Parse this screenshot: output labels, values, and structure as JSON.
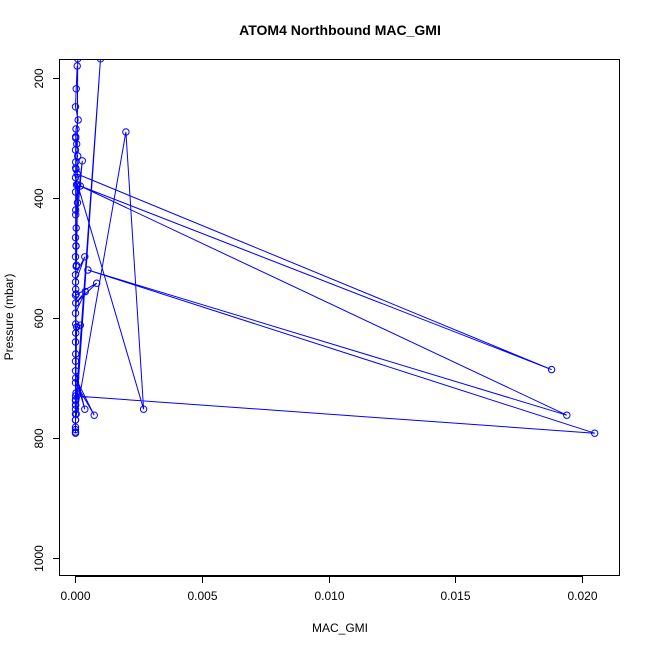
{
  "chart_data": {
    "type": "line",
    "title": "ATOM4 Northbound MAC_GMI",
    "xlabel": "MAC_GMI",
    "ylabel": "Pressure (mbar)",
    "xlim": [
      -0.0006,
      0.0215
    ],
    "ylim": [
      1030,
      170
    ],
    "y_reversed": true,
    "x_ticks": [
      0.0,
      0.005,
      0.01,
      0.015,
      0.02
    ],
    "x_tick_labels": [
      "0.000",
      "0.005",
      "0.010",
      "0.015",
      "0.020"
    ],
    "y_ticks": [
      200,
      400,
      600,
      800,
      1000
    ],
    "y_tick_labels": [
      "200",
      "400",
      "600",
      "800",
      "1000"
    ],
    "grid": false,
    "legend": "none",
    "series_color": "#0000ff",
    "series": [
      {
        "x": [
          8e-05,
          4e-05,
          1e-05,
          0.00012,
          3e-05,
          2e-05,
          6e-05,
          1e-05,
          0.0001,
          2e-05,
          3e-05,
          1e-05,
          5e-05,
          1e-05,
          9e-05,
          2e-05,
          0.00028,
          4e-05,
          1e-05,
          3e-05,
          1e-05,
          4e-05,
          1e-05,
          0.00038,
          1e-05,
          2e-05,
          1e-05,
          0.00085,
          2e-05,
          0.0004,
          1e-05,
          2e-05,
          0.0002,
          2e-05,
          1e-05,
          2e-05,
          1e-05,
          1e-05,
          0.00038,
          2e-05,
          0.00075,
          1e-05,
          3e-05,
          1e-05,
          2e-05,
          0.001,
          4e-05,
          1e-05,
          0.002,
          0.0027,
          0.0001,
          5e-05,
          0.0001,
          8e-05,
          0.0188,
          0.0002,
          0.0194,
          0.0005,
          0.0205,
          1e-05,
          6e-05,
          1e-05,
          4e-05,
          1e-05,
          3e-05,
          1e-05,
          2e-05,
          1e-05,
          2e-05,
          1e-05,
          2e-05,
          1e-05,
          1e-05,
          1e-05,
          1e-05
        ],
        "y": [
          180,
          218,
          248,
          270,
          285,
          298,
          310,
          320,
          330,
          340,
          352,
          366,
          378,
          390,
          408,
          428,
          338,
          450,
          466,
          480,
          498,
          514,
          528,
          498,
          540,
          552,
          562,
          542,
          575,
          556,
          592,
          610,
          612,
          625,
          640,
          660,
          672,
          688,
          752,
          700,
          762,
          708,
          725,
          736,
          745,
          168,
          760,
          770,
          290,
          752,
          378,
          512,
          168,
          360,
          686,
          380,
          762,
          520,
          792,
          730,
          615,
          738,
          560,
          745,
          480,
          752,
          420,
          760,
          350,
          770,
          300,
          782,
          786,
          790,
          792
        ]
      }
    ]
  }
}
